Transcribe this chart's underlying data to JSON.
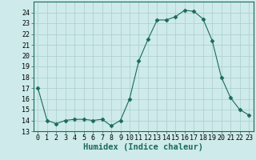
{
  "x": [
    0,
    1,
    2,
    3,
    4,
    5,
    6,
    7,
    8,
    9,
    10,
    11,
    12,
    13,
    14,
    15,
    16,
    17,
    18,
    19,
    20,
    21,
    22,
    23
  ],
  "y": [
    17,
    14,
    13.7,
    14,
    14.1,
    14.1,
    14,
    14.1,
    13.5,
    14,
    16,
    19.5,
    21.5,
    23.3,
    23.3,
    23.6,
    24.2,
    24.1,
    23.4,
    21.4,
    18,
    16.1,
    15,
    14.5
  ],
  "line_color": "#1a6b5a",
  "marker": "D",
  "marker_size": 2.5,
  "bg_color": "#ceeaea",
  "grid_color": "#aacece",
  "xlabel": "Humidex (Indice chaleur)",
  "ylim": [
    13,
    25
  ],
  "xlim": [
    -0.5,
    23.5
  ],
  "yticks": [
    13,
    14,
    15,
    16,
    17,
    18,
    19,
    20,
    21,
    22,
    23,
    24
  ],
  "xticks": [
    0,
    1,
    2,
    3,
    4,
    5,
    6,
    7,
    8,
    9,
    10,
    11,
    12,
    13,
    14,
    15,
    16,
    17,
    18,
    19,
    20,
    21,
    22,
    23
  ],
  "tick_fontsize": 6,
  "xlabel_fontsize": 7.5
}
